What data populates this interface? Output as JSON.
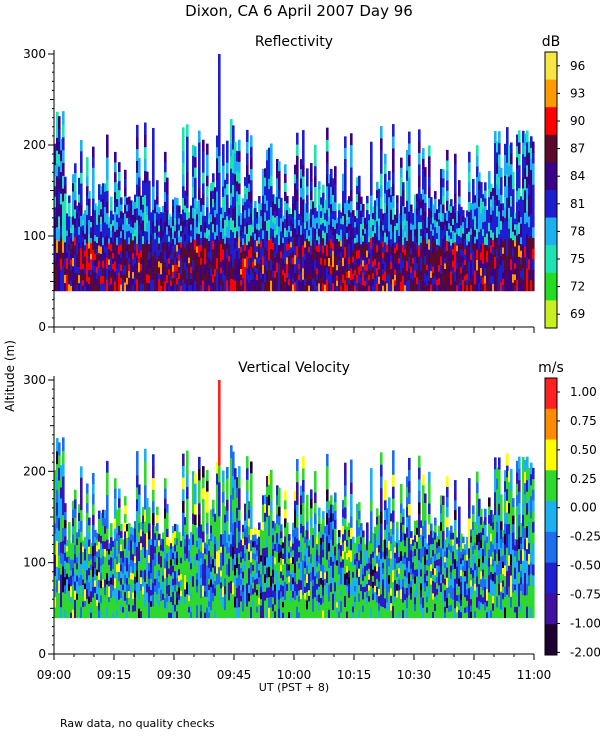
{
  "chart_data": [
    {
      "type": "heatmap",
      "title": "Dixon, CA   6 April 2007   Day   96",
      "panel_title": "Reflectivity",
      "unit": "dB",
      "ylabel": "Altitude  (m)",
      "xlabel": "UT   (PST + 8)",
      "x_ticks": [
        "09:00",
        "09:15",
        "09:30",
        "09:45",
        "10:00",
        "10:15",
        "10:30",
        "10:45",
        "11:00"
      ],
      "y_ticks": [
        "0",
        "100",
        "200",
        "300"
      ],
      "ylim": [
        0,
        300
      ],
      "colorbar_ticks": [
        "96",
        "93",
        "90",
        "87",
        "84",
        "81",
        "78",
        "75",
        "72",
        "69"
      ],
      "colorbar_colors": [
        "#f5e642",
        "#ff9b00",
        "#ff0000",
        "#5a0a2a",
        "#3a0088",
        "#1e1ed0",
        "#1cb0f0",
        "#1ee3b0",
        "#22dd22",
        "#c8f020"
      ],
      "data_bottom_m": 40,
      "typical_echo_top_m": 120
    },
    {
      "type": "heatmap",
      "panel_title": "Vertical Velocity",
      "unit": "m/s",
      "y_ticks": [
        "0",
        "100",
        "200",
        "300"
      ],
      "ylim": [
        0,
        300
      ],
      "colorbar_ticks": [
        "1.00",
        "0.75",
        "0.50",
        "0.25",
        "0.00",
        "-0.25",
        "-0.50",
        "-0.75",
        "-1.00",
        "-2.00"
      ],
      "colorbar_colors": [
        "#ff2020",
        "#ff8c00",
        "#ffff00",
        "#2ed82e",
        "#1cb0f0",
        "#1e6ef0",
        "#2020d0",
        "#4010a0",
        "#200030"
      ],
      "data_bottom_m": 40,
      "typical_echo_top_m": 120
    }
  ],
  "footer": {
    "note": "Raw data, no quality checks"
  }
}
